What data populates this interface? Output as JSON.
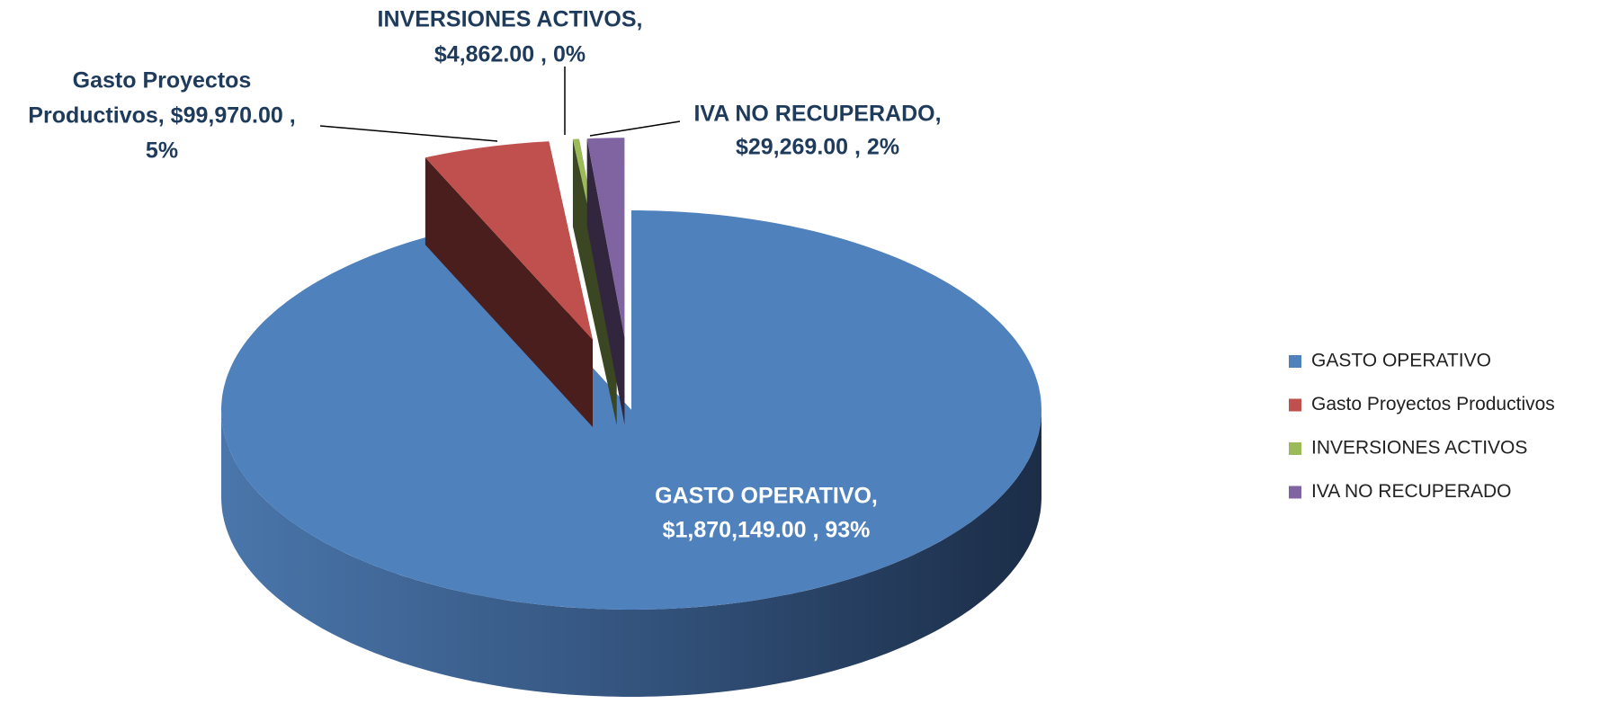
{
  "chart_data": {
    "type": "pie3d",
    "categories": [
      "GASTO OPERATIVO",
      "Gasto Proyectos Productivos",
      "INVERSIONES  ACTIVOS",
      "IVA NO RECUPERADO"
    ],
    "values": [
      1870149,
      99970,
      4862,
      29269
    ],
    "colors": [
      "#4f81bd",
      "#c0504d",
      "#9bbb59",
      "#8064a2"
    ],
    "data_labels": [
      [
        "GASTO OPERATIVO,",
        "$1,870,149.00 , 93%"
      ],
      [
        "Gasto Proyectos",
        "Productivos,  $99,970.00 ,",
        "5%"
      ],
      [
        "INVERSIONES  ACTIVOS,",
        "$4,862.00 , 0%"
      ],
      [
        "IVA NO RECUPERADO,",
        "$29,269.00 , 2%"
      ]
    ],
    "legend": "right"
  }
}
